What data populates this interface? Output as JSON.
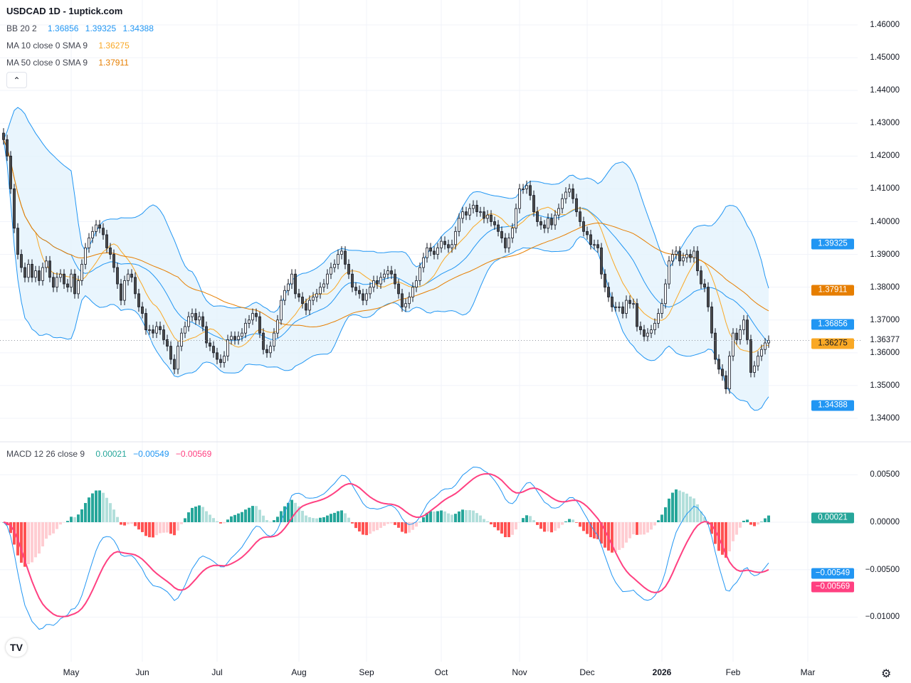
{
  "header": {
    "title": "USDCAD 1D - 1uptick.com"
  },
  "legend": {
    "bb": {
      "label": "BB 20 2",
      "basis": "1.36856",
      "upper": "1.39325",
      "lower": "1.34388"
    },
    "ma10": {
      "label": "MA 10 close 0 SMA 9",
      "value": "1.36275"
    },
    "ma50": {
      "label": "MA 50 close 0 SMA 9",
      "value": "1.37911"
    },
    "macd": {
      "label": "MACD 12 26 close 9",
      "hist": "0.00021",
      "macd": "−0.00549",
      "signal": "−0.00569"
    }
  },
  "collapse_icon": "chevron-up-icon",
  "logo": "TV",
  "settings_icon": "gear-icon",
  "colors": {
    "bb_line": "#2196f3",
    "bb_fill": "#e3f2fd",
    "ma10": "#f9a825",
    "ma50": "#e67e00",
    "macd": "#2196f3",
    "signal": "#ff4081",
    "hist_up_strong": "#26a69a",
    "hist_up_weak": "#b2dfdb",
    "hist_down_strong": "#ff5252",
    "hist_down_weak": "#ffcdd2",
    "candle_up": "#ffffff",
    "candle_down": "#4a4a4a",
    "candle_border": "#131722"
  },
  "chart_data": {
    "type": "candlestick",
    "symbol": "USDCAD",
    "interval": "1D",
    "price_axis": {
      "range": [
        1.34,
        1.46
      ],
      "ticks": [
        "1.46000",
        "1.45000",
        "1.44000",
        "1.43000",
        "1.42000",
        "1.41000",
        "1.40000",
        "1.39000",
        "1.38000",
        "1.37000",
        "1.36000",
        "1.35000",
        "1.34000"
      ]
    },
    "macd_axis": {
      "range": [
        -0.0115,
        0.0065
      ],
      "ticks": [
        "0.00500",
        "0.00000",
        "−0.00500",
        "−0.01000"
      ]
    },
    "time_ticks": [
      {
        "label": "May",
        "bar": 19
      },
      {
        "label": "Jun",
        "bar": 39
      },
      {
        "label": "Jul",
        "bar": 60
      },
      {
        "label": "Aug",
        "bar": 83
      },
      {
        "label": "Sep",
        "bar": 102
      },
      {
        "label": "Oct",
        "bar": 123
      },
      {
        "label": "Nov",
        "bar": 145
      },
      {
        "label": "Dec",
        "bar": 164
      },
      {
        "label": "2026",
        "bar": 185,
        "bold": true
      },
      {
        "label": "Feb",
        "bar": 205
      },
      {
        "label": "Mar",
        "bar": 226
      }
    ],
    "closes": [
      1.425,
      1.42,
      1.41,
      1.398,
      1.39,
      1.386,
      1.383,
      1.387,
      1.383,
      1.385,
      1.382,
      1.386,
      1.388,
      1.383,
      1.38,
      1.383,
      1.384,
      1.381,
      1.38,
      1.384,
      1.378,
      1.382,
      1.387,
      1.392,
      1.395,
      1.397,
      1.399,
      1.398,
      1.396,
      1.392,
      1.39,
      1.386,
      1.381,
      1.376,
      1.382,
      1.384,
      1.383,
      1.378,
      1.374,
      1.372,
      1.367,
      1.367,
      1.366,
      1.368,
      1.367,
      1.364,
      1.362,
      1.358,
      1.355,
      1.362,
      1.366,
      1.368,
      1.371,
      1.372,
      1.37,
      1.371,
      1.368,
      1.363,
      1.362,
      1.36,
      1.358,
      1.357,
      1.359,
      1.364,
      1.365,
      1.364,
      1.365,
      1.366,
      1.369,
      1.37,
      1.372,
      1.371,
      1.366,
      1.361,
      1.36,
      1.362,
      1.366,
      1.37,
      1.376,
      1.379,
      1.381,
      1.384,
      1.378,
      1.377,
      1.375,
      1.373,
      1.376,
      1.377,
      1.378,
      1.38,
      1.381,
      1.384,
      1.386,
      1.387,
      1.39,
      1.391,
      1.387,
      1.384,
      1.38,
      1.379,
      1.378,
      1.376,
      1.378,
      1.38,
      1.382,
      1.381,
      1.383,
      1.384,
      1.385,
      1.384,
      1.381,
      1.378,
      1.374,
      1.375,
      1.377,
      1.38,
      1.382,
      1.386,
      1.389,
      1.392,
      1.391,
      1.39,
      1.392,
      1.394,
      1.393,
      1.392,
      1.393,
      1.397,
      1.401,
      1.403,
      1.402,
      1.404,
      1.405,
      1.403,
      1.403,
      1.401,
      1.402,
      1.4,
      1.399,
      1.397,
      1.395,
      1.392,
      1.395,
      1.398,
      1.404,
      1.41,
      1.41,
      1.411,
      1.408,
      1.403,
      1.4,
      1.399,
      1.398,
      1.401,
      1.399,
      1.402,
      1.404,
      1.407,
      1.409,
      1.41,
      1.407,
      1.403,
      1.4,
      1.397,
      1.396,
      1.393,
      1.393,
      1.392,
      1.384,
      1.38,
      1.377,
      1.374,
      1.374,
      1.374,
      1.372,
      1.376,
      1.375,
      1.375,
      1.368,
      1.367,
      1.365,
      1.366,
      1.367,
      1.369,
      1.372,
      1.375,
      1.381,
      1.388,
      1.39,
      1.391,
      1.388,
      1.389,
      1.39,
      1.389,
      1.391,
      1.385,
      1.381,
      1.38,
      1.374,
      1.366,
      1.358,
      1.355,
      1.353,
      1.349,
      1.359,
      1.366,
      1.364,
      1.367,
      1.37,
      1.364,
      1.354,
      1.356,
      1.359,
      1.361,
      1.363,
      1.36377
    ],
    "last_price": "1.36377",
    "indicators": {
      "bollinger": {
        "length": 20,
        "mult": 2,
        "basis": 1.36856,
        "upper": 1.39325,
        "lower": 1.34388
      },
      "ma10": {
        "length": 10,
        "value": 1.36275
      },
      "ma50": {
        "length": 50,
        "value": 1.37911
      },
      "macd": {
        "fast": 12,
        "slow": 26,
        "signal": 9,
        "hist": 0.00021,
        "macd": -0.00549,
        "signal_value": -0.00569
      }
    }
  }
}
